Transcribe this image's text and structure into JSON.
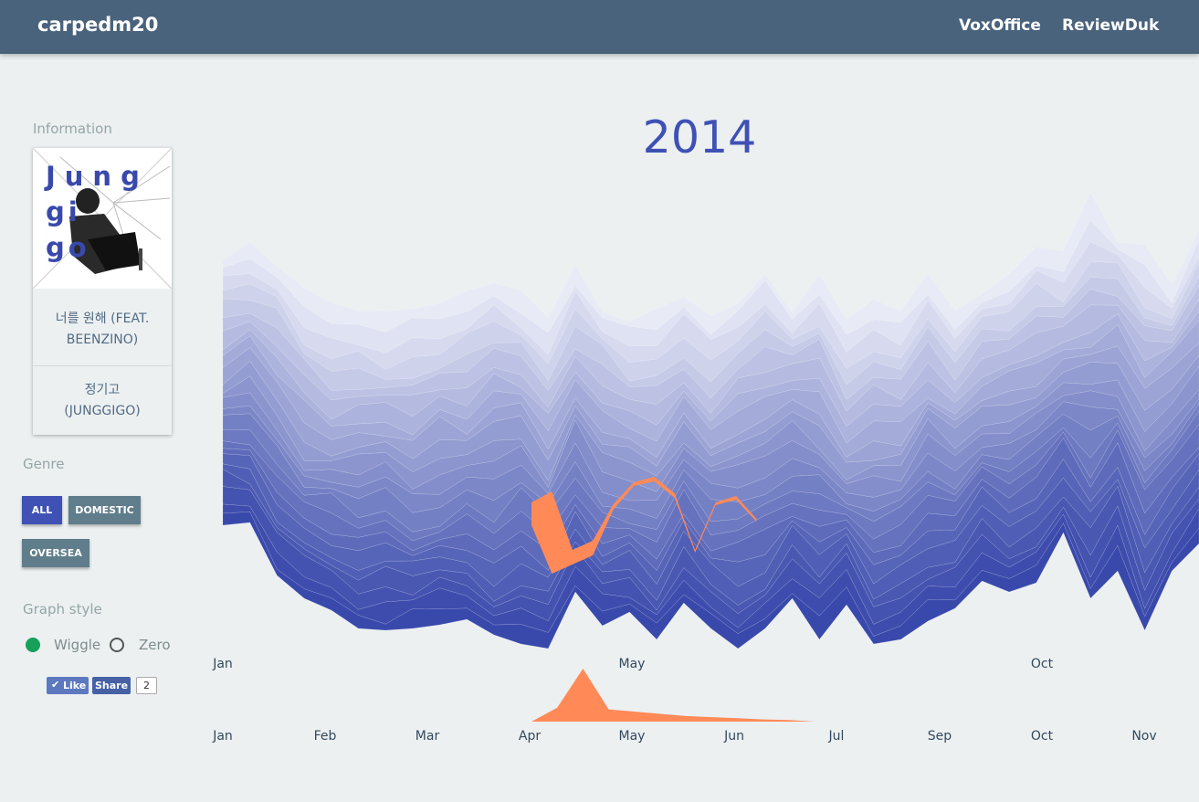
{
  "navbar": {
    "brand": "carpedm20",
    "links": [
      "VoxOffice",
      "ReviewDuk"
    ]
  },
  "sidebar": {
    "info_label": "Information",
    "song": {
      "cover_letters": "Jung gi go",
      "title_line1": "너를 원해 (FEAT.",
      "title_line2": "BEENZINO)",
      "artist_line1": "정기고",
      "artist_line2": "(JUNGGIGO)"
    },
    "genre_label": "Genre",
    "genre_buttons": [
      "ALL",
      "DOMESTIC",
      "OVERSEA"
    ],
    "graph_style_label": "Graph style",
    "graph_styles": [
      "Wiggle",
      "Zero"
    ],
    "social": {
      "like_label": "Like",
      "share_label": "Share",
      "share_count": "2"
    }
  },
  "colors": {
    "navbar": "#4a637c",
    "accent": "#3f51b5",
    "highlight": "#ff8a57",
    "button_inactive": "#607d8b",
    "radio_active": "#16a05a"
  },
  "chart_data": {
    "type": "area",
    "title": "2014",
    "offset": "wiggle",
    "main_x_ticks": [
      "Jan",
      "May",
      "Oct"
    ],
    "context_x_ticks": [
      "Jan",
      "Feb",
      "Mar",
      "Apr",
      "May",
      "Jun",
      "Jul",
      "Sep",
      "Oct",
      "Nov"
    ],
    "stream_weeks": 37,
    "stream": {
      "top": [
        285,
        265,
        292,
        315,
        332,
        340,
        341,
        338,
        332,
        318,
        310,
        318,
        348,
        290,
        342,
        352,
        338,
        325,
        346,
        332,
        300,
        342,
        300,
        350,
        328,
        340,
        300,
        340,
        322,
        300,
        270,
        275,
        210,
        265,
        268,
        312,
        252
      ],
      "bottom": [
        575,
        572,
        630,
        655,
        668,
        688,
        690,
        688,
        684,
        678,
        695,
        705,
        710,
        648,
        685,
        670,
        700,
        660,
        688,
        710,
        688,
        655,
        700,
        662,
        705,
        700,
        680,
        666,
        636,
        648,
        638,
        583,
        655,
        625,
        690,
        625,
        595
      ],
      "layer_count": 24
    },
    "highlight_song": {
      "name": "너를 원해 (FEAT. BEENZINO)",
      "main_band_top": [
        550,
        538,
        602,
        592,
        552,
        528,
        522,
        540,
        602,
        550,
        543,
        568
      ],
      "main_band_bottom": [
        575,
        628,
        618,
        608,
        558,
        532,
        527,
        545,
        605,
        553,
        547,
        571
      ],
      "context_values": [
        0,
        25,
        95,
        22,
        18,
        14,
        10,
        8,
        6,
        4,
        3,
        0
      ]
    }
  }
}
